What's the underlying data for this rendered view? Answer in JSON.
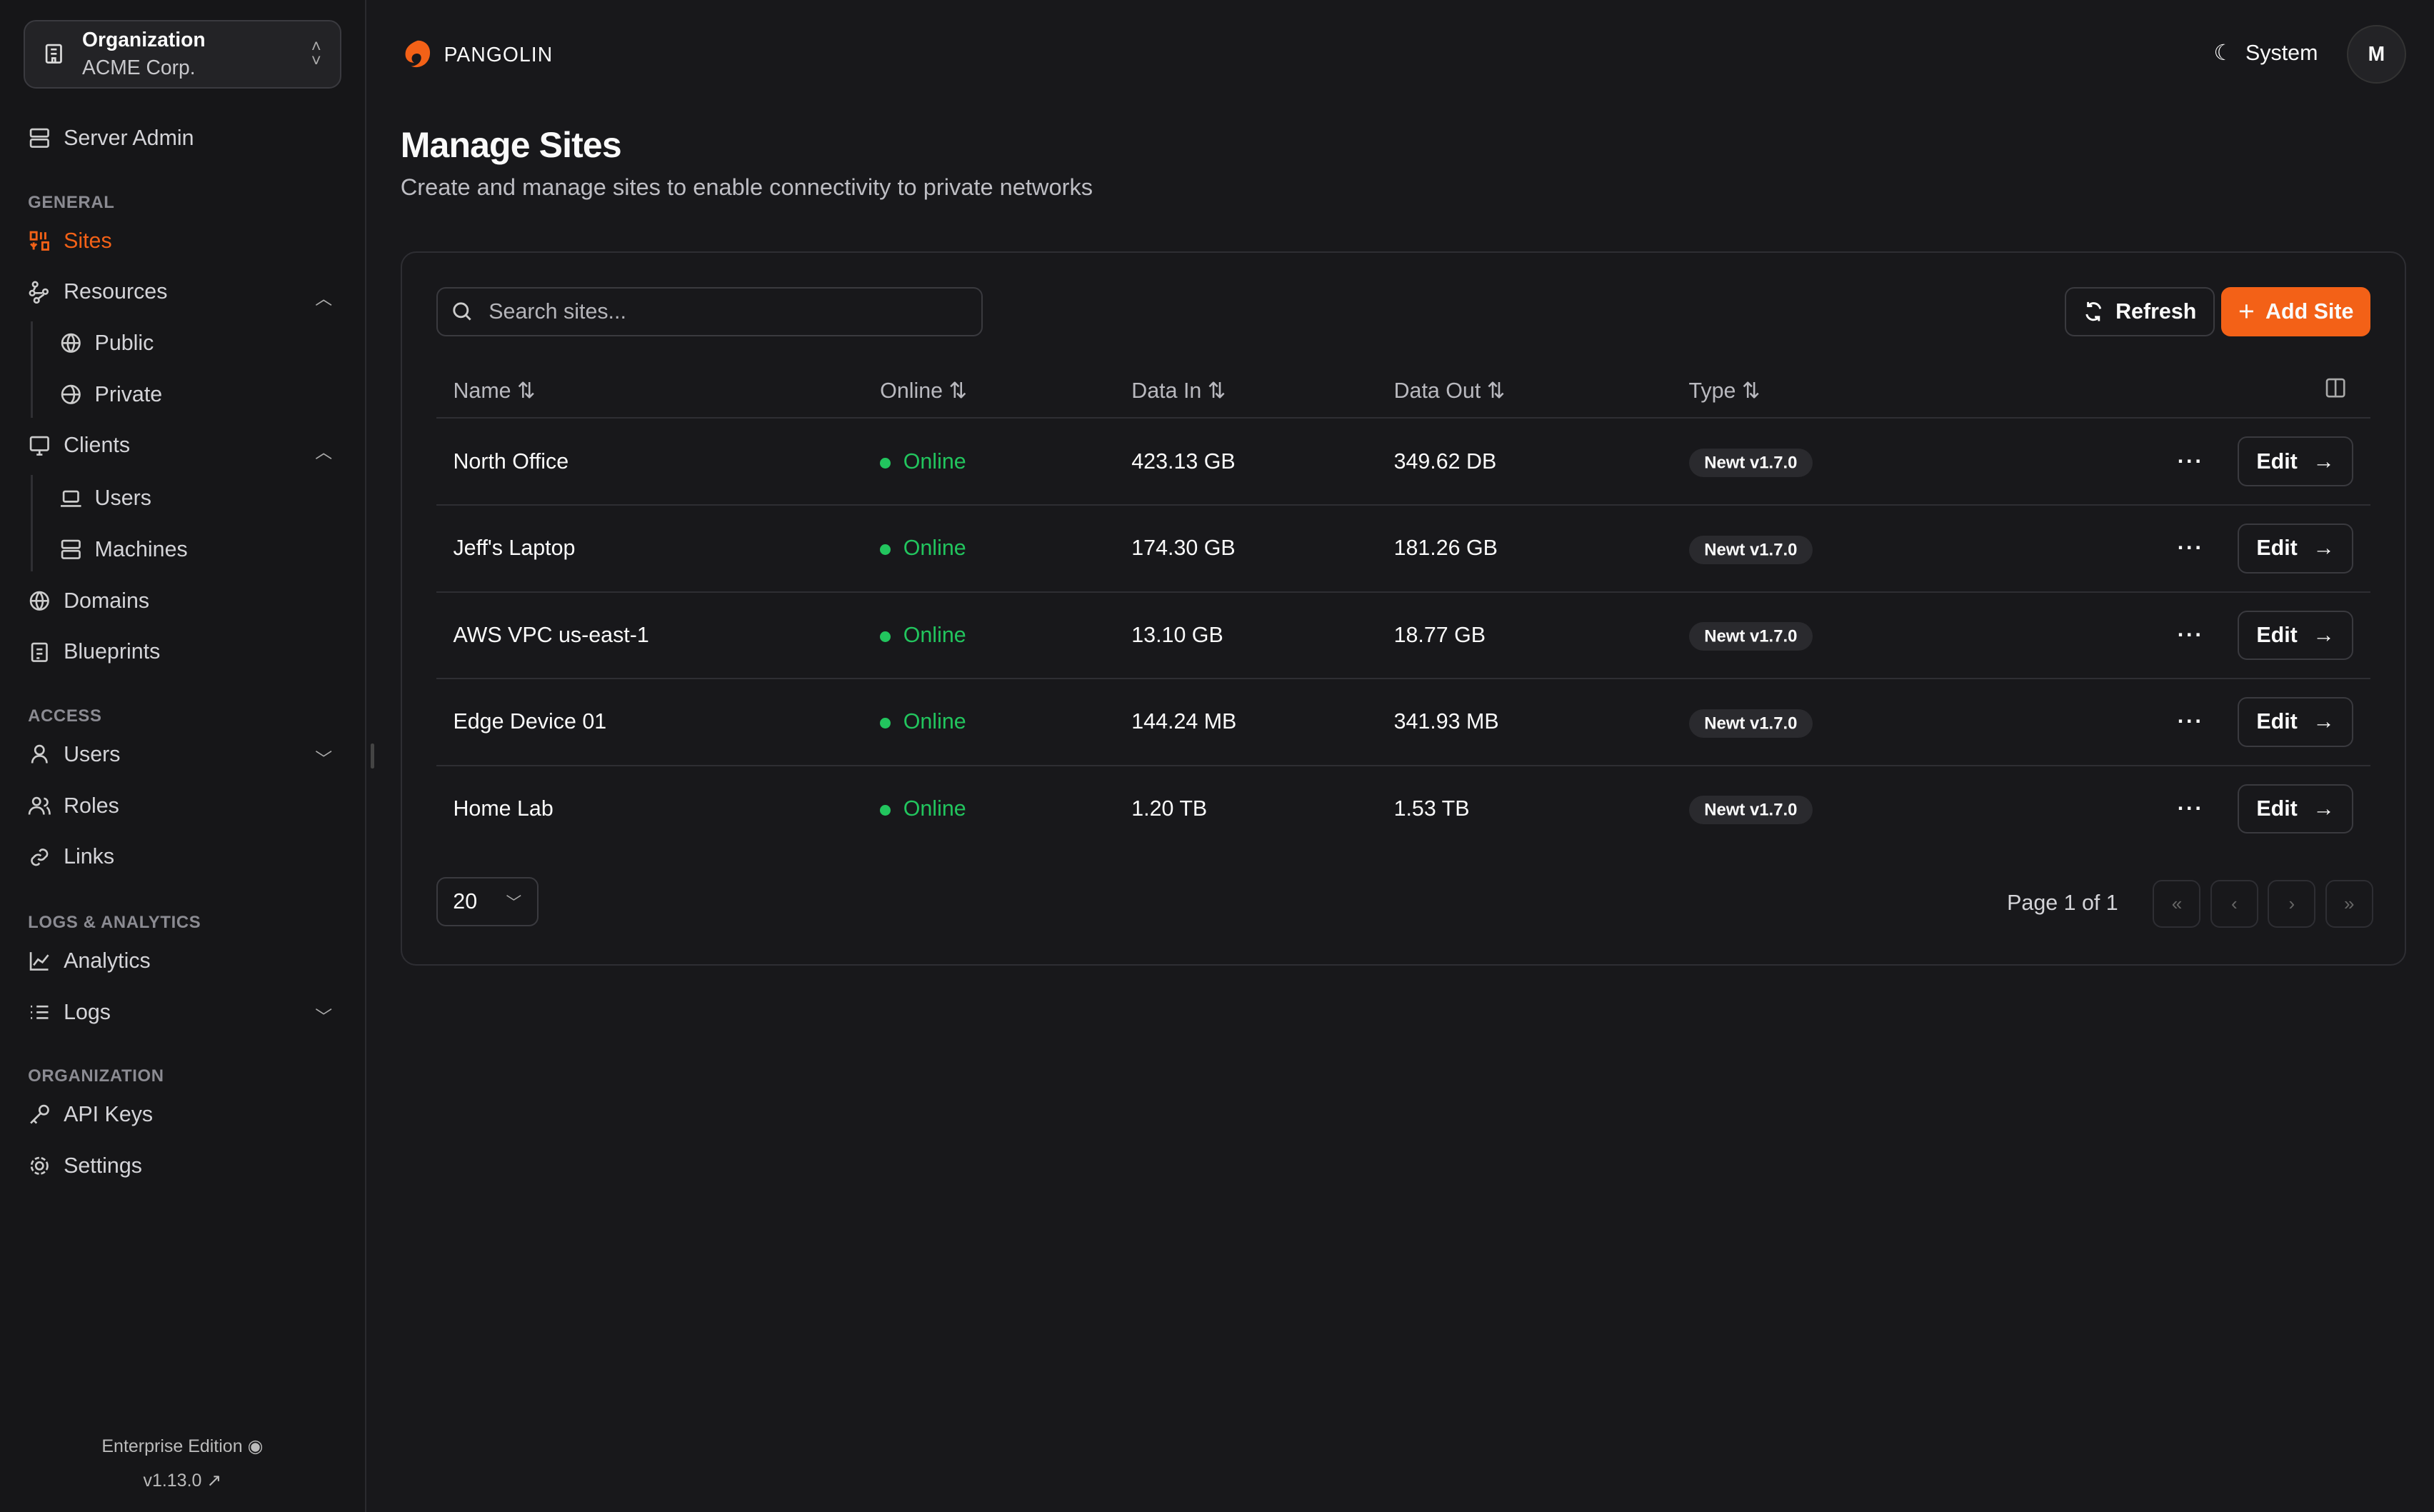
{
  "org": {
    "label": "Organization",
    "name": "ACME Corp."
  },
  "sidebar": {
    "server_admin": "Server Admin",
    "sections": {
      "general": "GENERAL",
      "access": "ACCESS",
      "logs": "LOGS & ANALYTICS",
      "organization": "ORGANIZATION"
    },
    "items": {
      "sites": "Sites",
      "resources": "Resources",
      "public": "Public",
      "private": "Private",
      "clients": "Clients",
      "users": "Users",
      "machines": "Machines",
      "domains": "Domains",
      "blueprints": "Blueprints",
      "access_users": "Users",
      "roles": "Roles",
      "links": "Links",
      "analytics": "Analytics",
      "logs": "Logs",
      "api_keys": "API Keys",
      "settings": "Settings"
    },
    "footer": {
      "edition": "Enterprise Edition",
      "version": "v1.13.0"
    }
  },
  "header": {
    "brand": "PANGOLIN",
    "theme": "System",
    "avatar": "M"
  },
  "page": {
    "title": "Manage Sites",
    "subtitle": "Create and manage sites to enable connectivity to private networks"
  },
  "toolbar": {
    "search_placeholder": "Search sites...",
    "refresh": "Refresh",
    "add": "Add Site"
  },
  "table": {
    "columns": [
      "Name",
      "Online",
      "Data In",
      "Data Out",
      "Type"
    ],
    "rows": [
      {
        "name": "North Office",
        "status": "Online",
        "in": "423.13 GB",
        "out": "349.62 DB",
        "type": "Newt v1.7.0"
      },
      {
        "name": "Jeff's Laptop",
        "status": "Online",
        "in": "174.30 GB",
        "out": "181.26 GB",
        "type": "Newt v1.7.0"
      },
      {
        "name": "AWS VPC us-east-1",
        "status": "Online",
        "in": "13.10 GB",
        "out": "18.77 GB",
        "type": "Newt v1.7.0"
      },
      {
        "name": "Edge Device 01",
        "status": "Online",
        "in": "144.24 MB",
        "out": "341.93 MB",
        "type": "Newt v1.7.0"
      },
      {
        "name": "Home Lab",
        "status": "Online",
        "in": "1.20 TB",
        "out": "1.53 TB",
        "type": "Newt v1.7.0"
      }
    ],
    "edit": "Edit"
  },
  "pagination": {
    "page_size": "20",
    "page_label": "Page 1 of 1"
  },
  "colors": {
    "accent": "#f36117",
    "online": "#22c55e"
  }
}
